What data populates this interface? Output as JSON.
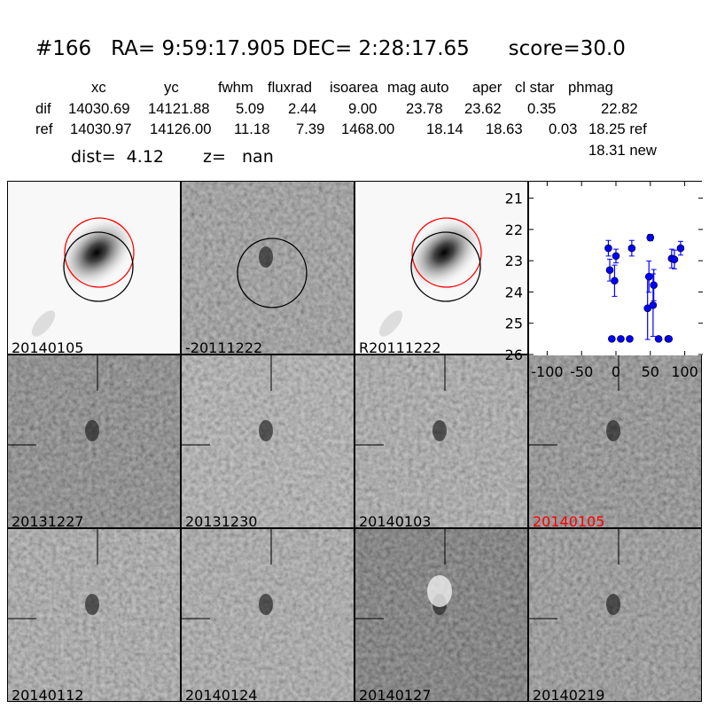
{
  "header": {
    "title": "#166   RA= 9:59:17.905 DEC= 2:28:17.65      score=30.0"
  },
  "table": {
    "columns": [
      "xc",
      "yc",
      "fwhm",
      "fluxrad",
      "isoarea",
      "mag auto",
      "aper",
      "cl star",
      "phmag"
    ],
    "dif": {
      "label": "dif",
      "values": [
        "14030.69",
        "14121.88",
        "5.09",
        "2.44",
        "9.00",
        "23.78",
        "23.62",
        "0.35",
        "22.82"
      ]
    },
    "ref": {
      "label": "ref",
      "values": [
        "14030.97",
        "14126.00",
        "11.18",
        "7.39",
        "1468.00",
        "18.14",
        "18.63",
        "0.03",
        "18.25 ref"
      ]
    },
    "new": "18.31 new",
    "dist": "dist=  4.12",
    "z": "z=   nan"
  },
  "panels": [
    {
      "label": "20140105",
      "kind": "ref",
      "color": "#000000"
    },
    {
      "label": "-20111222",
      "kind": "diff",
      "color": "#000000"
    },
    {
      "label": "R20111222",
      "kind": "ref",
      "color": "#000000"
    },
    {
      "label": "",
      "kind": "plot",
      "color": "#000000"
    },
    {
      "label": "20131227",
      "kind": "cut",
      "shade": 95,
      "color": "#000000"
    },
    {
      "label": "20131230",
      "kind": "cut",
      "shade": 160,
      "color": "#000000"
    },
    {
      "label": "20140103",
      "kind": "cut",
      "shade": 150,
      "color": "#000000"
    },
    {
      "label": "20140105",
      "kind": "cut",
      "shade": 110,
      "color": "#ff0000"
    },
    {
      "label": "20140112",
      "kind": "cut",
      "shade": 150,
      "color": "#000000"
    },
    {
      "label": "20140124",
      "kind": "cut",
      "shade": 150,
      "color": "#000000"
    },
    {
      "label": "20140127",
      "kind": "cut",
      "shade": 70,
      "blob": true,
      "color": "#000000"
    },
    {
      "label": "20140219",
      "kind": "cut",
      "shade": 120,
      "color": "#000000"
    }
  ],
  "chart_data": {
    "type": "scatter",
    "xlim": [
      -125,
      125
    ],
    "ylim": [
      26,
      20.5
    ],
    "xticks": [
      -100,
      -50,
      0,
      50,
      100
    ],
    "yticks": [
      21,
      22,
      23,
      24,
      25,
      26
    ],
    "color": "#0000ff",
    "points": [
      {
        "x": -11,
        "y": 22.6,
        "err": 0.25
      },
      {
        "x": 0,
        "y": 22.85,
        "err": 0.22
      },
      {
        "x": -9,
        "y": 23.3,
        "err": 0.35
      },
      {
        "x": -2,
        "y": 23.64,
        "err": 0.5
      },
      {
        "x": -6,
        "y": 25.5,
        "err": 0.05
      },
      {
        "x": 7,
        "y": 25.5,
        "err": 0.05
      },
      {
        "x": 20,
        "y": 25.5,
        "err": 0.05
      },
      {
        "x": 23,
        "y": 22.6,
        "err": 0.25
      },
      {
        "x": 50,
        "y": 22.26,
        "err": 0.1
      },
      {
        "x": 48,
        "y": 23.51,
        "err": 0.5
      },
      {
        "x": 55,
        "y": 23.78,
        "err": 0.5
      },
      {
        "x": 46,
        "y": 24.52,
        "err": 1.0
      },
      {
        "x": 54,
        "y": 24.42,
        "err": 1.0
      },
      {
        "x": 62,
        "y": 25.5,
        "err": 0.05
      },
      {
        "x": 76,
        "y": 25.5,
        "err": 0.05
      },
      {
        "x": 77,
        "y": 25.5,
        "err": 0.05
      },
      {
        "x": 81,
        "y": 22.93,
        "err": 0.3
      },
      {
        "x": 85,
        "y": 22.96,
        "err": 0.3
      },
      {
        "x": 94,
        "y": 22.6,
        "err": 0.22
      }
    ]
  }
}
